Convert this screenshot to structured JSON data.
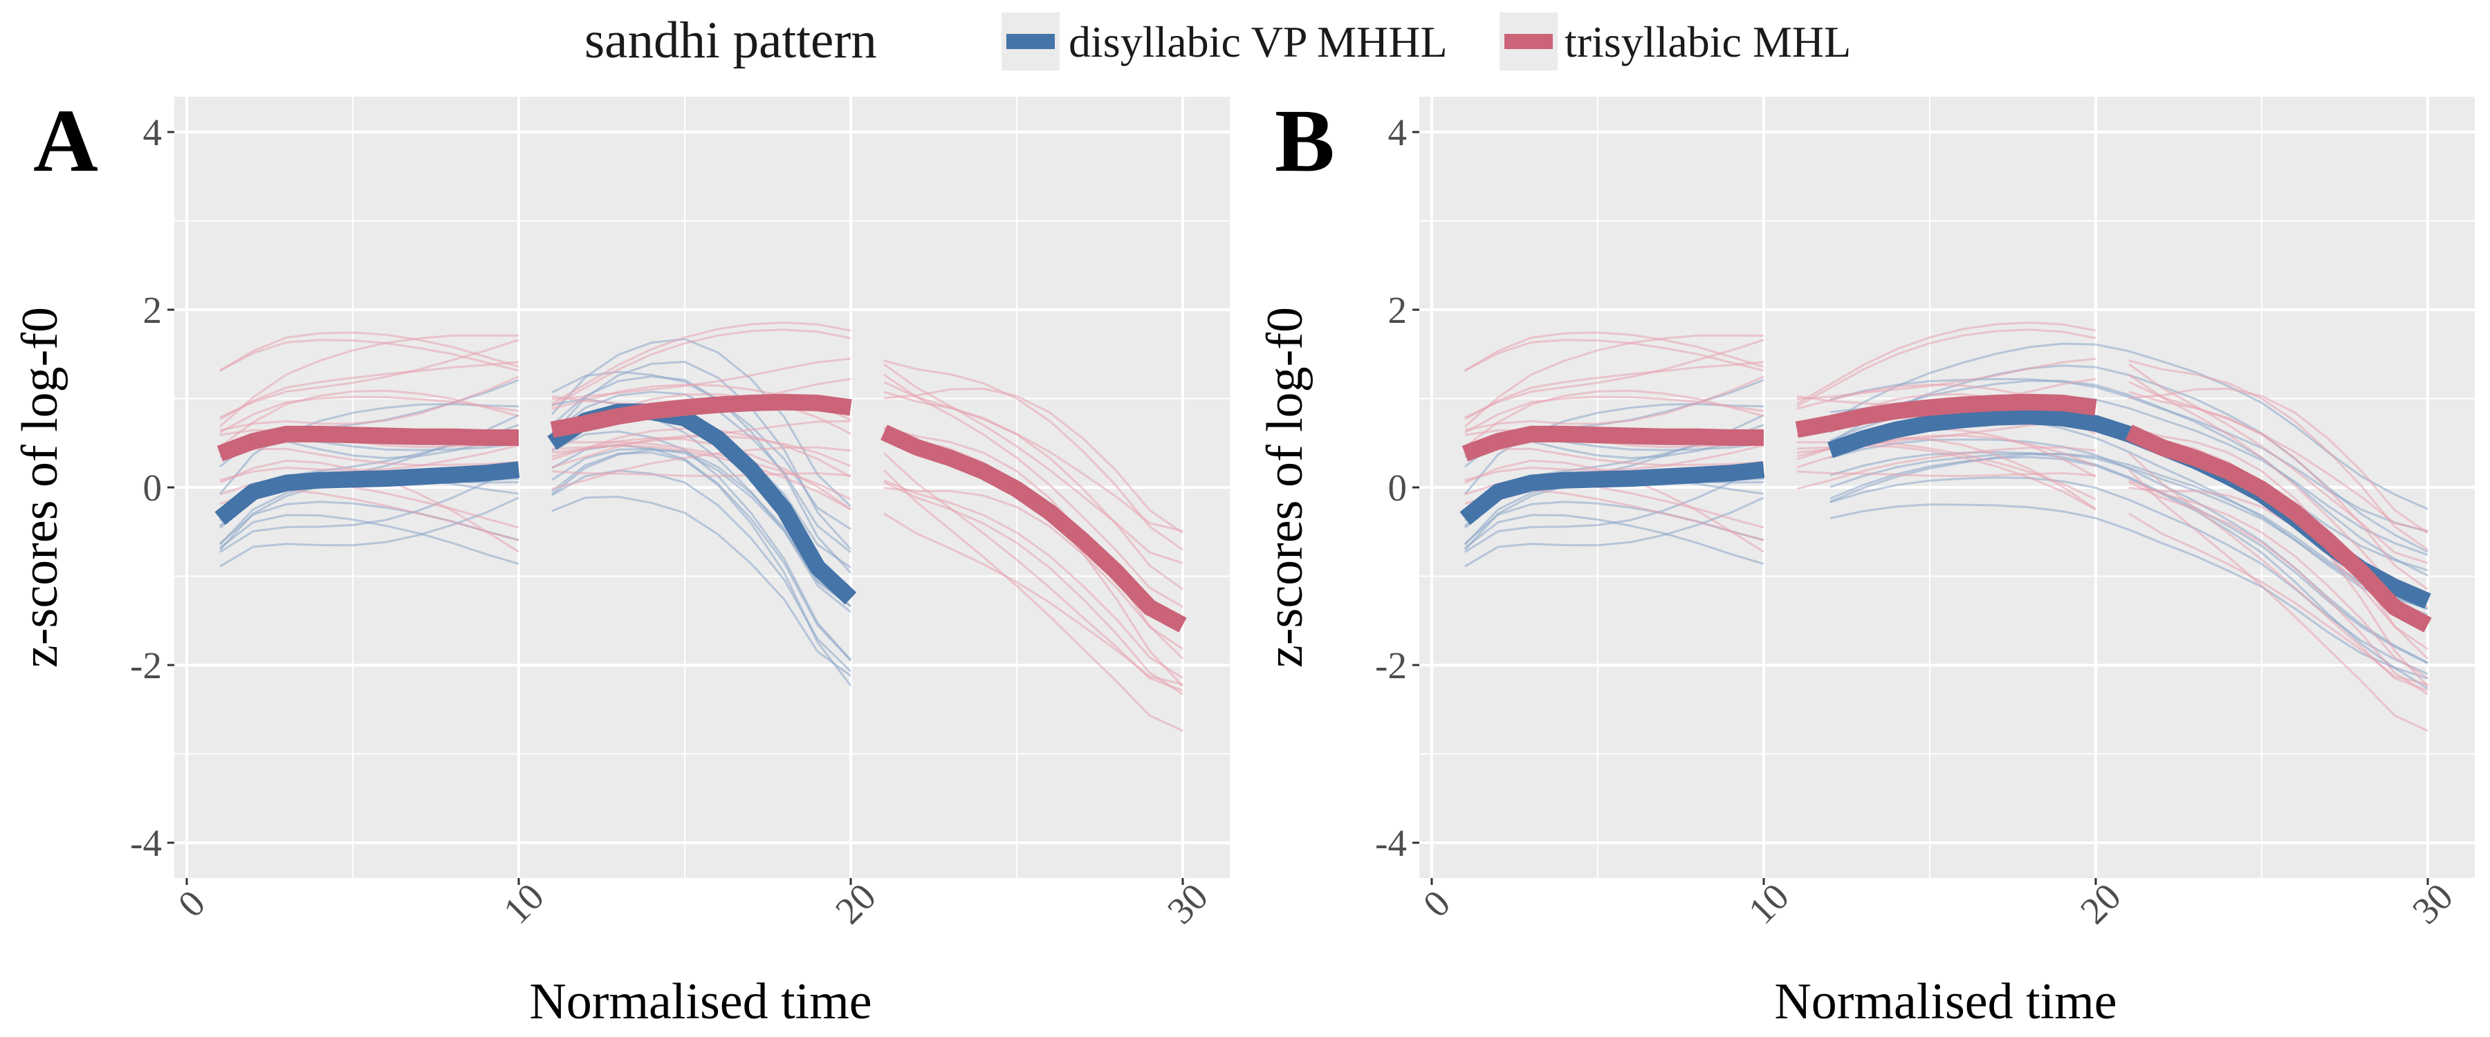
{
  "legend": {
    "title": "sandhi pattern",
    "items": [
      {
        "label": "disyllabic VP MHHL",
        "color": "#4574a8"
      },
      {
        "label": "trisyllabic MHL",
        "color": "#cb6478"
      }
    ]
  },
  "colors": {
    "panel_bg": "#ebebeb",
    "grid": "#ffffff",
    "blue": "#4574a8",
    "red": "#cb6478",
    "thin_blue": "#8aa6c8",
    "thin_red": "#e8a2b0"
  },
  "chart_data": [
    {
      "panel": "A",
      "type": "line",
      "xlabel": "Normalised time",
      "ylabel": "z-scores of log-f0",
      "xlim": [
        0,
        30
      ],
      "ylim": [
        -4,
        4
      ],
      "xticks": [
        "0",
        "10",
        "20",
        "30"
      ],
      "yticks": [
        "-4",
        "-2",
        "0",
        "2",
        "4"
      ],
      "grid": true,
      "series": [
        {
          "name": "disyllabic VP MHHL",
          "segments": [
            {
              "x": [
                1,
                2,
                3,
                4,
                5,
                6,
                7,
                8,
                9,
                10
              ],
              "y": [
                -0.35,
                -0.05,
                0.05,
                0.08,
                0.09,
                0.1,
                0.12,
                0.14,
                0.16,
                0.2
              ]
            },
            {
              "x": [
                11,
                12,
                13,
                14,
                15,
                16,
                17,
                18,
                19,
                20
              ],
              "y": [
                0.5,
                0.75,
                0.85,
                0.85,
                0.78,
                0.55,
                0.2,
                -0.25,
                -0.9,
                -1.25
              ]
            }
          ]
        },
        {
          "name": "trisyllabic MHL",
          "segments": [
            {
              "x": [
                1,
                2,
                3,
                4,
                5,
                6,
                7,
                8,
                9,
                10
              ],
              "y": [
                0.38,
                0.52,
                0.6,
                0.6,
                0.59,
                0.58,
                0.57,
                0.57,
                0.56,
                0.56
              ]
            },
            {
              "x": [
                11,
                12,
                13,
                14,
                15,
                16,
                17,
                18,
                19,
                20
              ],
              "y": [
                0.65,
                0.72,
                0.8,
                0.86,
                0.9,
                0.93,
                0.95,
                0.96,
                0.95,
                0.9
              ]
            },
            {
              "x": [
                21,
                22,
                23,
                24,
                25,
                26,
                27,
                28,
                29,
                30
              ],
              "y": [
                0.62,
                0.45,
                0.33,
                0.18,
                -0.02,
                -0.28,
                -0.6,
                -0.95,
                -1.35,
                -1.55
              ]
            }
          ]
        }
      ]
    },
    {
      "panel": "B",
      "type": "line",
      "xlabel": "Normalised time",
      "ylabel": "z-scores of log-f0",
      "xlim": [
        0,
        30
      ],
      "ylim": [
        -4,
        4
      ],
      "xticks": [
        "0",
        "10",
        "20",
        "30"
      ],
      "yticks": [
        "-4",
        "-2",
        "0",
        "2",
        "4"
      ],
      "grid": true,
      "series": [
        {
          "name": "disyllabic VP MHHL",
          "segments": [
            {
              "x": [
                1,
                2,
                3,
                4,
                5,
                6,
                7,
                8,
                9,
                10
              ],
              "y": [
                -0.35,
                -0.05,
                0.05,
                0.08,
                0.09,
                0.1,
                0.12,
                0.14,
                0.16,
                0.2
              ]
            },
            {
              "x": [
                12,
                13,
                14,
                15,
                16,
                17,
                18,
                19,
                20,
                21,
                22,
                23,
                24,
                25,
                26,
                27,
                28,
                29,
                30
              ],
              "y": [
                0.42,
                0.55,
                0.65,
                0.72,
                0.76,
                0.79,
                0.8,
                0.78,
                0.72,
                0.6,
                0.45,
                0.3,
                0.12,
                -0.08,
                -0.35,
                -0.65,
                -0.92,
                -1.12,
                -1.28
              ]
            }
          ]
        },
        {
          "name": "trisyllabic MHL",
          "segments": [
            {
              "x": [
                1,
                2,
                3,
                4,
                5,
                6,
                7,
                8,
                9,
                10
              ],
              "y": [
                0.38,
                0.52,
                0.6,
                0.6,
                0.59,
                0.58,
                0.57,
                0.57,
                0.56,
                0.56
              ]
            },
            {
              "x": [
                11,
                12,
                13,
                14,
                15,
                16,
                17,
                18,
                19,
                20
              ],
              "y": [
                0.65,
                0.72,
                0.8,
                0.86,
                0.9,
                0.93,
                0.95,
                0.96,
                0.95,
                0.9
              ]
            },
            {
              "x": [
                21,
                22,
                23,
                24,
                25,
                26,
                27,
                28,
                29,
                30
              ],
              "y": [
                0.62,
                0.45,
                0.33,
                0.18,
                -0.02,
                -0.28,
                -0.6,
                -0.95,
                -1.35,
                -1.55
              ]
            }
          ]
        }
      ]
    }
  ]
}
